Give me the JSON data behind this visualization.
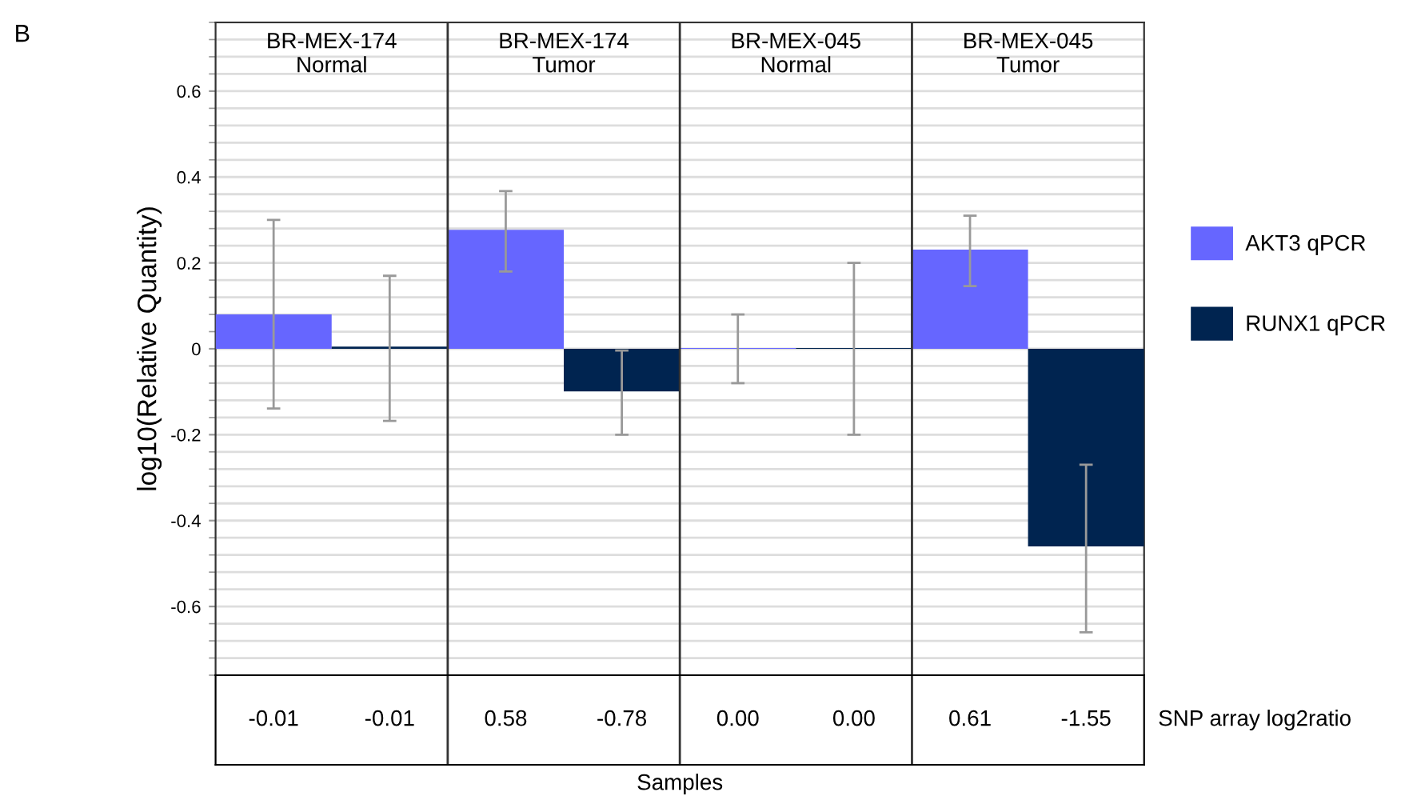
{
  "chart_data": {
    "type": "bar",
    "categories": [
      "BR-MEX-174\nNormal",
      "BR-MEX-174\nTumor",
      "BR-MEX-045\nNormal",
      "BR-MEX-045\nTumor"
    ],
    "series": [
      {
        "name": "AKT3 qPCR",
        "color": "#6666ff",
        "values": [
          0.08,
          0.277,
          0.002,
          0.231
        ],
        "errors": [
          [
            -0.139,
            0.3
          ],
          [
            0.18,
            0.367
          ],
          [
            -0.08,
            0.08
          ],
          [
            0.146,
            0.31
          ]
        ]
      },
      {
        "name": "RUNX1 qPCR",
        "color": "#002450",
        "values": [
          0.005,
          -0.099,
          0.002,
          -0.46
        ],
        "errors": [
          [
            -0.168,
            0.17
          ],
          [
            -0.2,
            -0.004
          ],
          [
            -0.2,
            0.2
          ],
          [
            -0.66,
            -0.27
          ]
        ]
      }
    ],
    "xlabel": "Samples",
    "ylabel": "log10(Relative Quantity)",
    "ylim": [
      -0.76,
      0.76
    ],
    "yticks": [
      -0.6,
      -0.4,
      -0.2,
      0,
      0.2,
      0.4,
      0.6
    ],
    "grid": "y",
    "legend": "right",
    "annotations": [
      "B",
      "-0.01",
      "-0.01",
      "0.58",
      "-0.78",
      "0.00",
      "0.00",
      "0.61",
      "-1.55",
      "SNP array log2ratio"
    ]
  }
}
